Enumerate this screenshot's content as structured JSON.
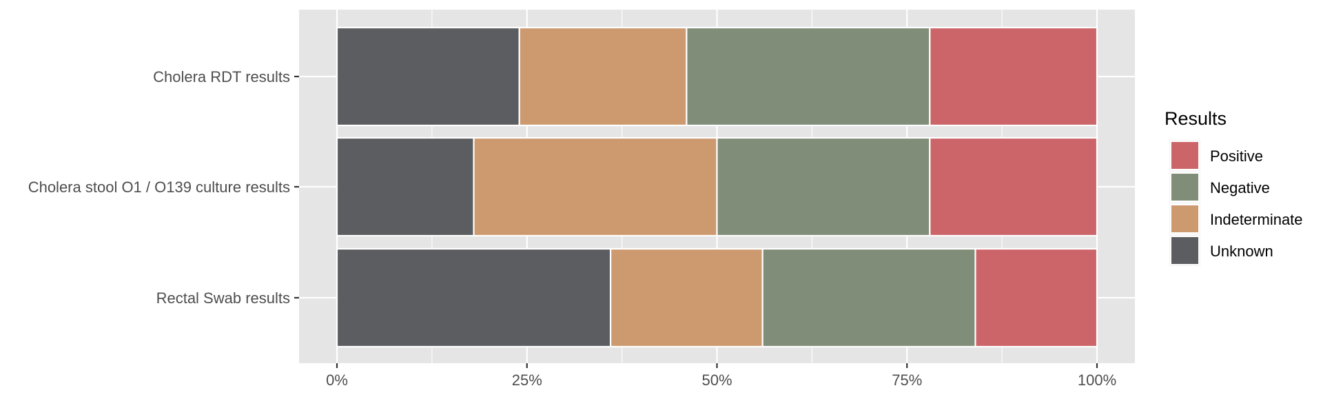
{
  "chart_data": {
    "type": "bar",
    "orientation": "horizontal",
    "stacked": true,
    "normalized": true,
    "categories": [
      "Cholera RDT results",
      "Cholera stool O1 / O139 culture results",
      "Rectal Swab results"
    ],
    "series": [
      {
        "name": "Unknown",
        "color": "#5c5d61",
        "values": [
          0.24,
          0.18,
          0.36
        ]
      },
      {
        "name": "Indeterminate",
        "color": "#cd9a70",
        "values": [
          0.22,
          0.32,
          0.2
        ]
      },
      {
        "name": "Negative",
        "color": "#808d78",
        "values": [
          0.32,
          0.28,
          0.28
        ]
      },
      {
        "name": "Positive",
        "color": "#cc6569",
        "values": [
          0.22,
          0.22,
          0.16
        ]
      }
    ],
    "x_ticks": [
      "0%",
      "25%",
      "50%",
      "75%",
      "100%"
    ],
    "xlim": [
      0,
      1
    ],
    "grid": true,
    "legend": {
      "title": "Results",
      "position": "right",
      "entries": [
        "Positive",
        "Negative",
        "Indeterminate",
        "Unknown"
      ]
    },
    "colors": {
      "panel": "#e5e5e5",
      "grid": "#ffffff",
      "text": "#4d4d4d"
    }
  }
}
